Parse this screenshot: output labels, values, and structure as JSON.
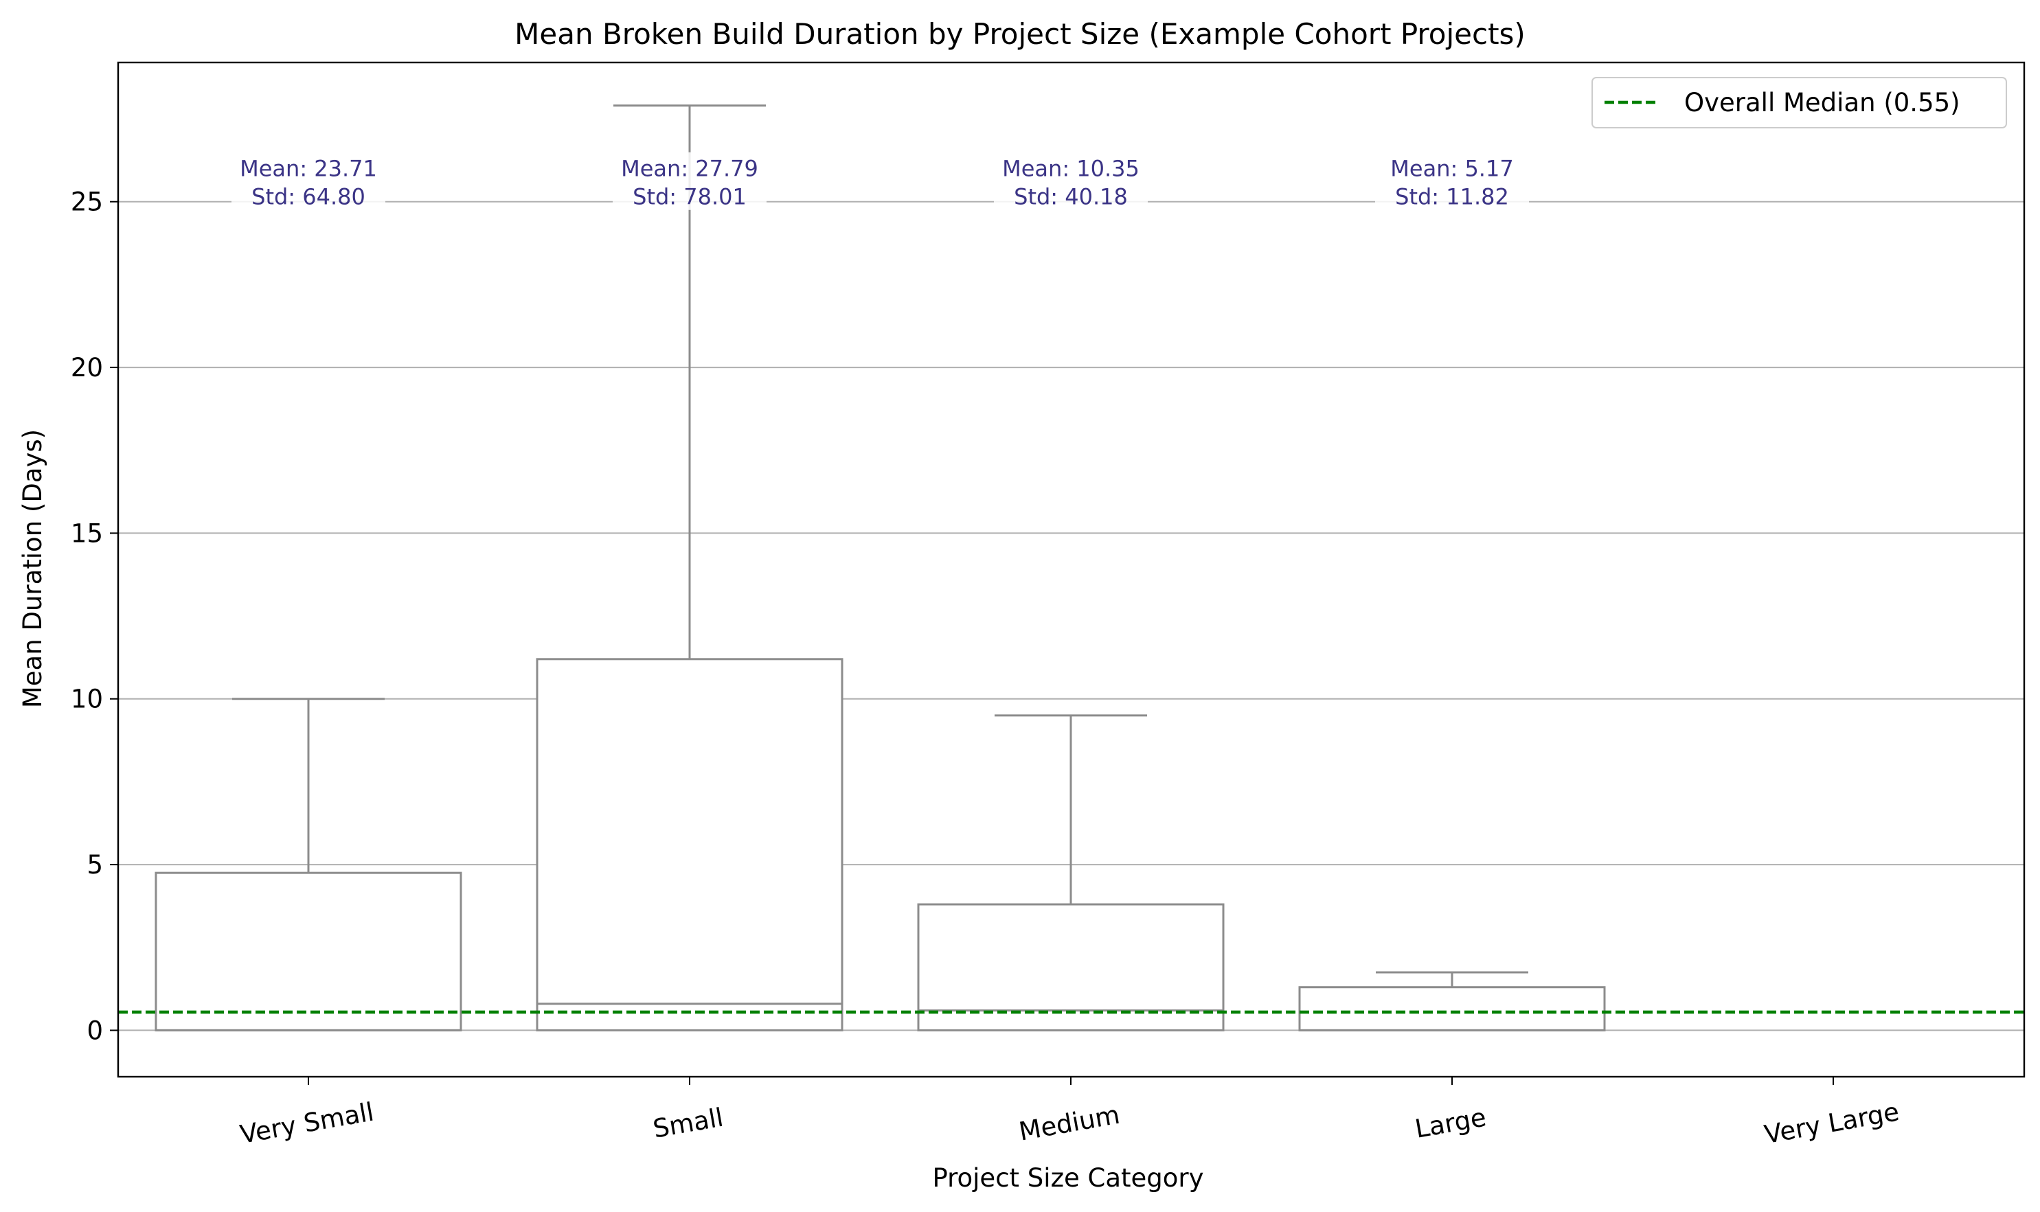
{
  "chart_data": {
    "type": "box",
    "title": "Mean Broken Build Duration by Project Size (Example Cohort Projects)",
    "xlabel": "Project Size Category",
    "ylabel": "Mean Duration (Days)",
    "ylim": [
      -1.4,
      29.2
    ],
    "yticks": [
      0,
      5,
      10,
      15,
      20,
      25
    ],
    "grid": "horizontal",
    "legend_position": "top-right",
    "categories": [
      "Very Small",
      "Small",
      "Medium",
      "Large",
      "Very Large"
    ],
    "boxes": [
      {
        "category": "Very Small",
        "whisker_low": 0.0,
        "q1": 0.0,
        "median": 0.0,
        "q3": 4.75,
        "whisker_high": 10.0
      },
      {
        "category": "Small",
        "whisker_low": 0.0,
        "q1": 0.0,
        "median": 0.8,
        "q3": 11.2,
        "whisker_high": 27.9
      },
      {
        "category": "Medium",
        "whisker_low": 0.0,
        "q1": 0.0,
        "median": 0.6,
        "q3": 3.8,
        "whisker_high": 9.5
      },
      {
        "category": "Large",
        "whisker_low": 0.0,
        "q1": 0.0,
        "median": 0.0,
        "q3": 1.3,
        "whisker_high": 1.75
      }
    ],
    "annotations": [
      {
        "category": "Very Small",
        "line1": "Mean: 23.71",
        "line2": "Std: 64.80"
      },
      {
        "category": "Small",
        "line1": "Mean: 27.79",
        "line2": "Std: 78.01"
      },
      {
        "category": "Medium",
        "line1": "Mean: 10.35",
        "line2": "Std: 40.18"
      },
      {
        "category": "Large",
        "line1": "Mean: 5.17",
        "line2": "Std: 11.82"
      }
    ],
    "annotation_y": 25,
    "reference_line": {
      "label": "Overall Median (0.55)",
      "value": 0.55,
      "style": "dashed"
    },
    "colors": {
      "box": "#8c8c8c",
      "grid": "#b0b0b0",
      "annotation": "#3b3486",
      "reference": "#008000"
    }
  }
}
